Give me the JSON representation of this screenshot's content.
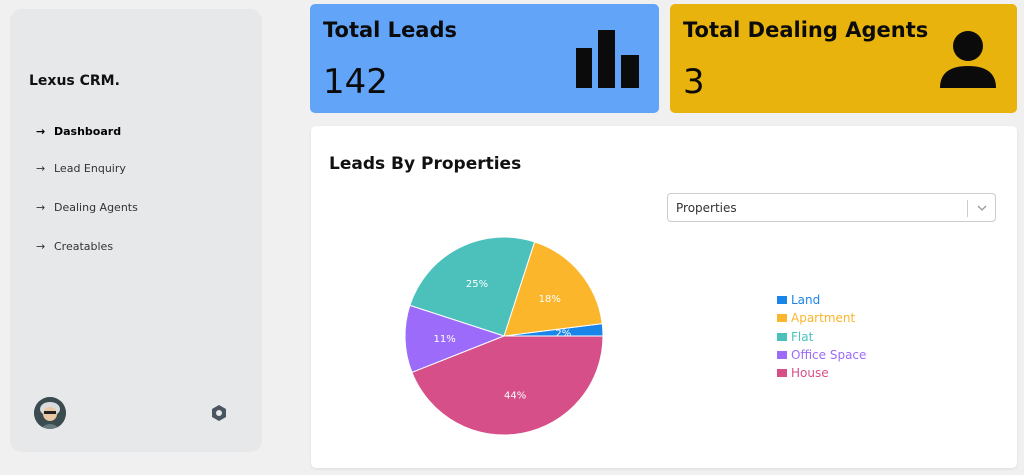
{
  "sidebar": {
    "brand": "Lexus CRM.",
    "items": [
      {
        "label": "Dashboard",
        "active": true
      },
      {
        "label": "Lead Enquiry",
        "active": false
      },
      {
        "label": "Dealing Agents",
        "active": false
      },
      {
        "label": "Creatables",
        "active": false
      }
    ]
  },
  "cards": {
    "leads": {
      "title": "Total Leads",
      "value": "142",
      "icon": "bar-chart-icon",
      "color": "#62a5f8"
    },
    "agents": {
      "title": "Total Dealing Agents",
      "value": "3",
      "icon": "user-icon",
      "color": "#e9b30d"
    }
  },
  "panel": {
    "title": "Leads By Properties",
    "select": {
      "value": "Properties"
    }
  },
  "chart_data": {
    "type": "pie",
    "categories": [
      "Land",
      "Apartment",
      "Flat",
      "Office Space",
      "House"
    ],
    "values": [
      2,
      18,
      25,
      11,
      44
    ],
    "labels": [
      "2%",
      "18%",
      "25%",
      "11%",
      "44%"
    ],
    "colors": [
      "#1a85e8",
      "#fbb62b",
      "#4cc1bc",
      "#9c6bfa",
      "#d64f88"
    ],
    "legend": "right"
  }
}
